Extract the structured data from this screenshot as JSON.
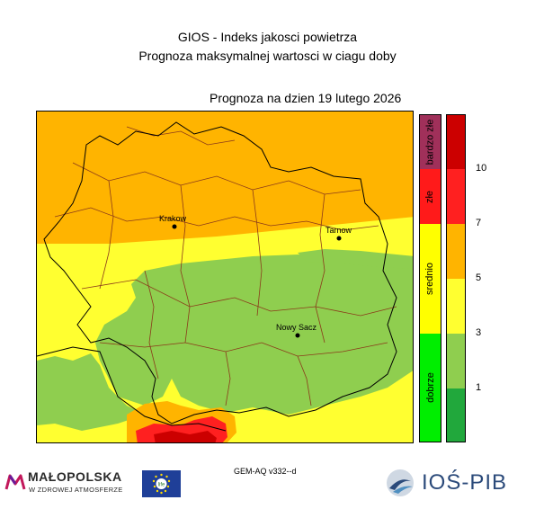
{
  "header": {
    "title_line1": "GIOS - Indeks jakosci powietrza",
    "title_line2": "Prognoza maksymalnej wartosci w ciagu doby",
    "forecast_date": "Prognoza na dzien  19 lutego 2026"
  },
  "map": {
    "cities": [
      {
        "name": "Krakow"
      },
      {
        "name": "Tarnow"
      },
      {
        "name": "Nowy Sacz"
      }
    ]
  },
  "legend": {
    "categories": [
      {
        "label": "bardzo złe",
        "color": "#a0305a"
      },
      {
        "label": "złe",
        "color": "#ff1a1a"
      },
      {
        "label": "srednio",
        "color": "#ffff00"
      },
      {
        "label": "dobrze",
        "color": "#00ee00"
      }
    ],
    "value_colors": [
      "#cc0000",
      "#ff2020",
      "#ffb400",
      "#ffff30",
      "#8fce4f",
      "#21a83c"
    ],
    "ticks": [
      "10",
      "7",
      "5",
      "3",
      "1"
    ]
  },
  "footer": {
    "model": "GEM-AQ v332--d",
    "malopolska_name": "MAŁOPOLSKA",
    "malopolska_tagline": "W ZDROWEJ ATMOSFERZE",
    "eu_flag_text": "life",
    "ios_name": "IOŚ-PIB"
  }
}
